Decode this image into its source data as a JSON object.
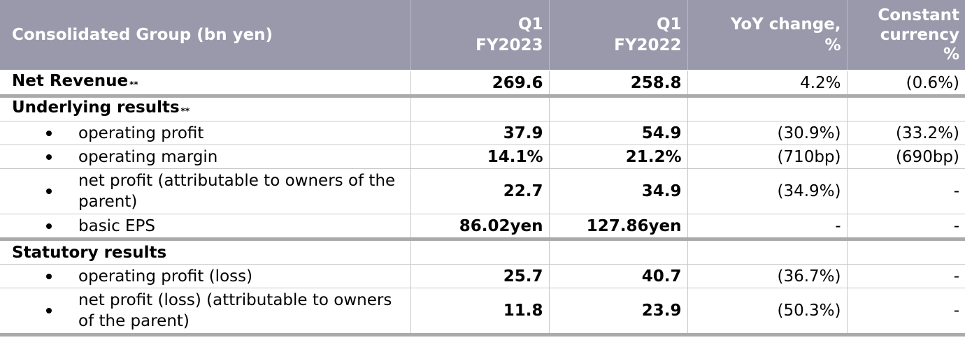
{
  "header": {
    "col0": "Consolidated Group (bn yen)",
    "col1": [
      "Q1",
      "FY2023"
    ],
    "col2": [
      "Q1",
      "FY2022"
    ],
    "col3": [
      "YoY change,",
      "%"
    ],
    "col4": [
      "Constant",
      "currency",
      "%"
    ]
  },
  "rows": {
    "net_revenue": {
      "label": "Net Revenue",
      "mark": "**",
      "q1_fy2023": "269.6",
      "q1_fy2022": "258.8",
      "yoy": "4.2%",
      "cc": "(0.6%)"
    },
    "underlying": {
      "label": "Underlying results",
      "mark": "**"
    },
    "u_op_profit": {
      "label": "operating profit",
      "q1_fy2023": "37.9",
      "q1_fy2022": "54.9",
      "yoy": "(30.9%)",
      "cc": "(33.2%)"
    },
    "u_op_margin": {
      "label": "operating margin",
      "q1_fy2023": "14.1%",
      "q1_fy2022": "21.2%",
      "yoy": "(710bp)",
      "cc": "(690bp)"
    },
    "u_net_profit": {
      "label": "net profit (attributable to owners of the parent)",
      "q1_fy2023": "22.7",
      "q1_fy2022": "34.9",
      "yoy": "(34.9%)",
      "cc": "-"
    },
    "u_eps": {
      "label": "basic EPS",
      "q1_fy2023": "86.02yen",
      "q1_fy2022": "127.86yen",
      "yoy": "-",
      "cc": "-"
    },
    "statutory": {
      "label": "Statutory results"
    },
    "s_op_profit": {
      "label": "operating profit (loss)",
      "q1_fy2023": "25.7",
      "q1_fy2022": "40.7",
      "yoy": "(36.7%)",
      "cc": "-"
    },
    "s_net_profit": {
      "label": "net profit (loss) (attributable to owners of the parent)",
      "q1_fy2023": "11.8",
      "q1_fy2022": "23.9",
      "yoy": "(50.3%)",
      "cc": "-"
    }
  }
}
